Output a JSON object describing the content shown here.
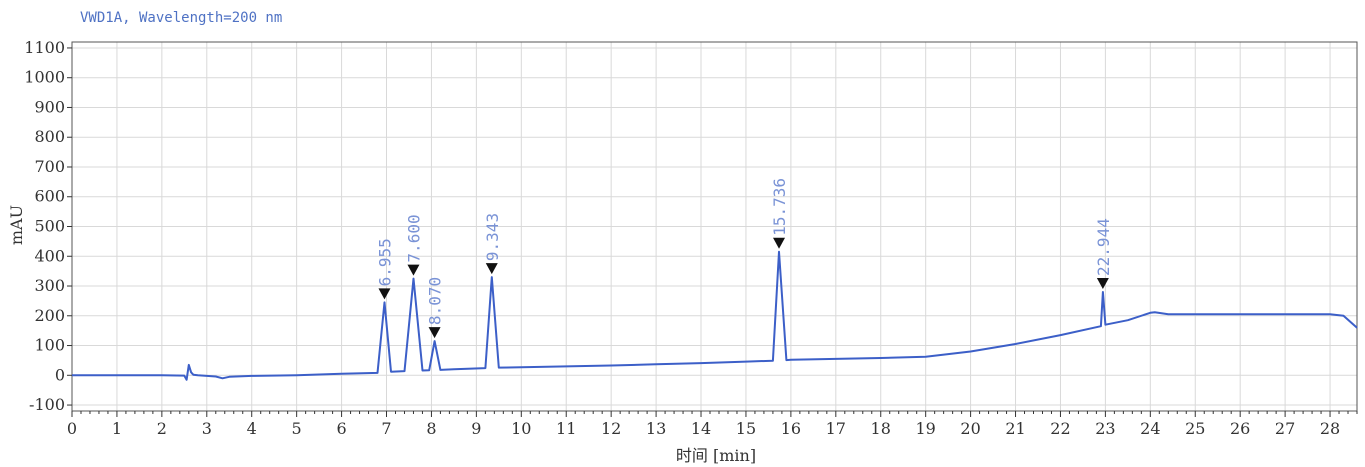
{
  "chart_data": {
    "type": "line",
    "title": "VWD1A, Wavelength=200 nm",
    "xlabel": "时间 [min]",
    "ylabel": "mAU",
    "xlim": [
      0,
      28.6
    ],
    "ylim": [
      -120,
      1120
    ],
    "x_ticks": [
      0,
      1,
      2,
      3,
      4,
      5,
      6,
      7,
      8,
      9,
      10,
      11,
      12,
      13,
      14,
      15,
      16,
      17,
      18,
      19,
      20,
      21,
      22,
      23,
      24,
      25,
      26,
      27,
      28
    ],
    "y_ticks": [
      -100,
      0,
      100,
      200,
      300,
      400,
      500,
      600,
      700,
      800,
      900,
      1000,
      1100
    ],
    "grid": true,
    "line_color": "#3c5fc8",
    "label_color": "#7a93d6",
    "series": [
      {
        "x": [
          0,
          1,
          2,
          2.5,
          2.55,
          2.6,
          2.65,
          2.7,
          2.8,
          3.0,
          3.2,
          3.35,
          3.5,
          4,
          5,
          6,
          6.8,
          6.955,
          7.1,
          7.4,
          7.6,
          7.8,
          7.95,
          8.07,
          8.2,
          8.5,
          9.2,
          9.343,
          9.5,
          10,
          11,
          12,
          13,
          14,
          15,
          15.6,
          15.736,
          15.9,
          16,
          17,
          18,
          19,
          20,
          21,
          22,
          22.9,
          22.944,
          23.0,
          23.5,
          24.0,
          24.1,
          24.4,
          25,
          26,
          27,
          28,
          28.3,
          28.6
        ],
        "y": [
          0,
          0,
          0,
          -1,
          -15,
          35,
          10,
          2,
          0,
          -2,
          -4,
          -10,
          -5,
          -2,
          0,
          5,
          8,
          245,
          12,
          14,
          325,
          16,
          17,
          115,
          18,
          20,
          24,
          330,
          26,
          27,
          30,
          33,
          37,
          41,
          46,
          49,
          415,
          51,
          52,
          55,
          58,
          62,
          80,
          105,
          135,
          165,
          280,
          170,
          185,
          210,
          212,
          205,
          205,
          205,
          205,
          205,
          200,
          160
        ]
      }
    ],
    "peaks": [
      {
        "label": "6.955",
        "x": 6.955,
        "y": 245
      },
      {
        "label": "7.600",
        "x": 7.6,
        "y": 325
      },
      {
        "label": "8.070",
        "x": 8.07,
        "y": 115
      },
      {
        "label": "9.343",
        "x": 9.343,
        "y": 330
      },
      {
        "label": "15.736",
        "x": 15.736,
        "y": 415
      },
      {
        "label": "22.944",
        "x": 22.944,
        "y": 280
      }
    ]
  }
}
